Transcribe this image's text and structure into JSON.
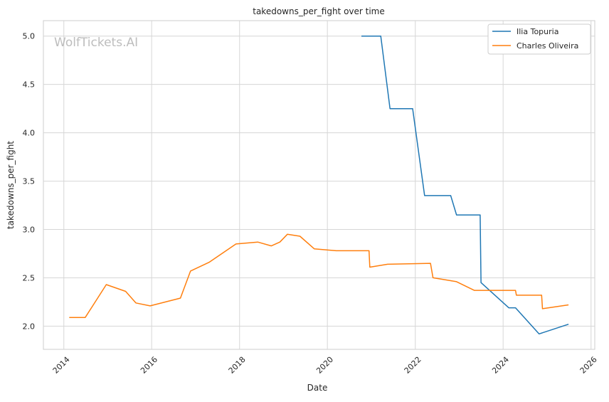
{
  "watermark": "WolfTickets.AI",
  "chart_data": {
    "type": "line",
    "title": "takedowns_per_fight over time",
    "xlabel": "Date",
    "ylabel": "takedowns_per_fight",
    "xlim": [
      "2013-07-15",
      "2026-02-01"
    ],
    "ylim": [
      1.76,
      5.16
    ],
    "x_ticks": [
      "2014",
      "2016",
      "2018",
      "2020",
      "2022",
      "2024",
      "2026"
    ],
    "y_ticks": [
      "2.0",
      "2.5",
      "3.0",
      "3.5",
      "4.0",
      "4.5",
      "5.0"
    ],
    "grid": true,
    "legend_position": "top-right",
    "series": [
      {
        "name": "Ilia Topuria",
        "color": "#1f77b4",
        "x": [
          "2020-10-10",
          "2021-03-20",
          "2021-06-05",
          "2021-12-10",
          "2022-03-19",
          "2022-10-22",
          "2022-12-10",
          "2023-06-24",
          "2023-07-01",
          "2024-02-17",
          "2024-04-13",
          "2024-10-26",
          "2025-06-28"
        ],
        "y": [
          5.0,
          5.0,
          4.25,
          4.25,
          3.35,
          3.35,
          3.15,
          3.15,
          2.45,
          2.19,
          2.19,
          1.92,
          2.02
        ]
      },
      {
        "name": "Charles Oliveira",
        "color": "#ff7f0e",
        "x": [
          "2014-02-15",
          "2014-06-28",
          "2014-12-20",
          "2015-05-30",
          "2015-08-23",
          "2015-12-19",
          "2016-08-27",
          "2016-11-19",
          "2017-04-22",
          "2017-12-02",
          "2018-06-01",
          "2018-09-22",
          "2018-12-02",
          "2019-02-02",
          "2019-05-18",
          "2019-09-14",
          "2020-03-14",
          "2020-12-12",
          "2020-12-19",
          "2021-05-15",
          "2022-05-07",
          "2022-05-28",
          "2022-10-22",
          "2022-12-10",
          "2023-05-06",
          "2024-04-13",
          "2024-04-20",
          "2024-11-16",
          "2024-11-23",
          "2025-06-28"
        ],
        "y": [
          2.09,
          2.09,
          2.43,
          2.36,
          2.24,
          2.21,
          2.29,
          2.57,
          2.66,
          2.85,
          2.87,
          2.83,
          2.87,
          2.95,
          2.93,
          2.8,
          2.78,
          2.78,
          2.61,
          2.64,
          2.65,
          2.5,
          2.47,
          2.46,
          2.37,
          2.37,
          2.32,
          2.32,
          2.18,
          2.22
        ]
      }
    ]
  }
}
